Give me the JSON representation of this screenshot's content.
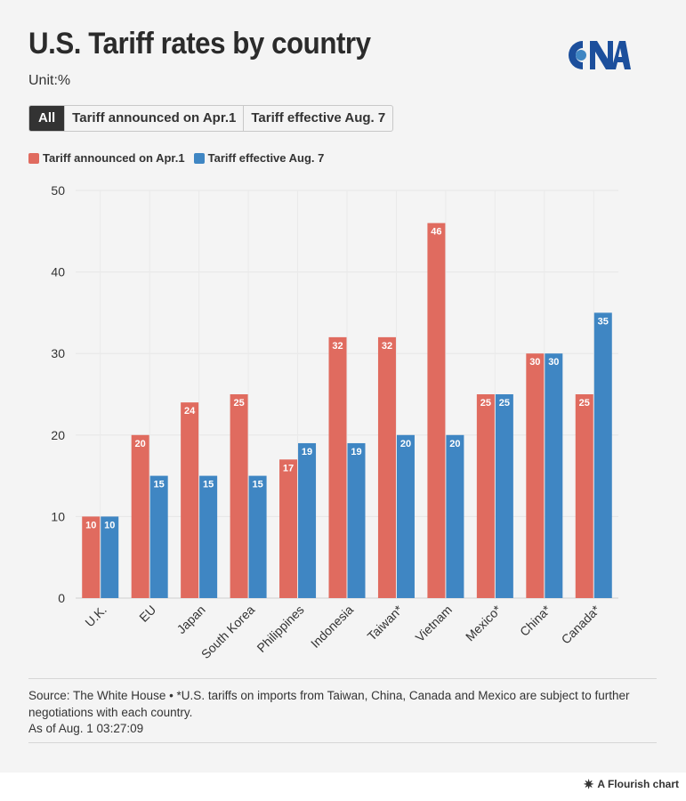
{
  "header": {
    "title": "U.S. Tariff rates by country",
    "subtitle": "Unit:%",
    "logo_text": "CNA"
  },
  "tabs": [
    {
      "label": "All",
      "active": true
    },
    {
      "label": "Tariff announced on Apr.1",
      "active": false
    },
    {
      "label": "Tariff effective Aug. 7",
      "active": false
    }
  ],
  "legend": [
    {
      "label": "Tariff announced on Apr.1",
      "color": "#e06b5f"
    },
    {
      "label": "Tariff effective Aug. 7",
      "color": "#3f86c3"
    }
  ],
  "chart_data": {
    "type": "bar",
    "categories": [
      "U.K.",
      "EU",
      "Japan",
      "South Korea",
      "Philippines",
      "Indonesia",
      "Taiwan*",
      "Vietnam",
      "Mexico*",
      "China*",
      "Canada*"
    ],
    "series": [
      {
        "name": "Tariff announced on Apr.1",
        "color": "#e06b5f",
        "values": [
          10,
          20,
          24,
          25,
          17,
          32,
          32,
          46,
          25,
          30,
          25
        ]
      },
      {
        "name": "Tariff effective Aug. 7",
        "color": "#3f86c3",
        "values": [
          10,
          15,
          15,
          15,
          19,
          19,
          20,
          20,
          25,
          30,
          35
        ]
      }
    ],
    "ylim": [
      0,
      50
    ],
    "yticks": [
      0,
      10,
      20,
      30,
      40,
      50
    ],
    "grid": true,
    "data_labels": true,
    "legend_position": "top-left"
  },
  "footer": {
    "source": "Source: The White House • *U.S. tariffs on imports from Taiwan, China, Canada and Mexico are subject to further negotiations with each country.",
    "as_of": "As of Aug. 1 03:27:09",
    "credit": "A Flourish chart",
    "credit_icon": "flourish-asterisk-icon"
  }
}
